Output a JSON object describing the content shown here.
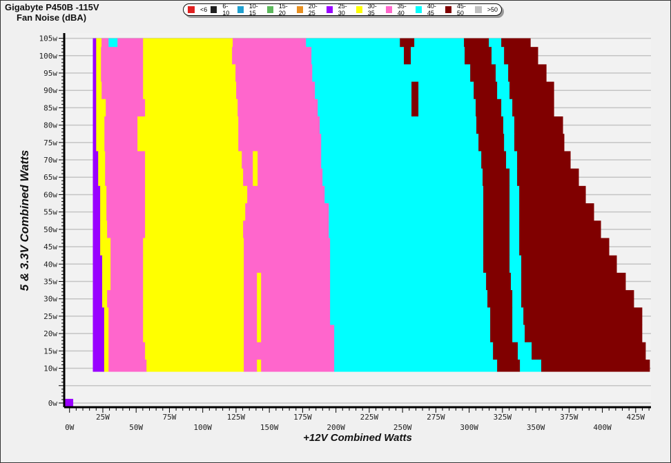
{
  "title": "Gigabyte P450B -115V",
  "subtitle": "Fan Noise (dBA)",
  "legend": [
    {
      "label": "<6",
      "color": "#e02020"
    },
    {
      "label": "6-10",
      "color": "#202020"
    },
    {
      "label": "10-15",
      "color": "#1fa0d0"
    },
    {
      "label": "15-20",
      "color": "#5cb85c"
    },
    {
      "label": "20-25",
      "color": "#e89020"
    },
    {
      "label": "25-30",
      "color": "#9900ff"
    },
    {
      "label": "30-35",
      "color": "#ffff00"
    },
    {
      "label": "35-40",
      "color": "#ff66cc"
    },
    {
      "label": "40-45",
      "color": "#00ffff"
    },
    {
      "label": "45-50",
      "color": "#800000"
    },
    {
      "label": ">50",
      "color": "#c0c0c0"
    }
  ],
  "chart_data": {
    "type": "heatmap",
    "title": "Gigabyte P450B -115V",
    "subtitle": "Fan Noise (dBA)",
    "xlabel": "+12V Combined Watts",
    "ylabel": "5 & 3.3V Combined Watts",
    "xlim": [
      -4,
      436.5
    ],
    "ylim": [
      -1.2,
      106.5
    ],
    "grid": "horizontal",
    "legend_position": "top",
    "x_ticks": [
      "0W",
      "25W",
      "50W",
      "75W",
      "100W",
      "125W",
      "150W",
      "175W",
      "200W",
      "225W",
      "250W",
      "275W",
      "300W",
      "325W",
      "350W",
      "375W",
      "400W",
      "425W"
    ],
    "y_ticks": [
      "0w",
      "10w",
      "15w",
      "20w",
      "25w",
      "30w",
      "35w",
      "40w",
      "45w",
      "50w",
      "55w",
      "60w",
      "65w",
      "70w",
      "75w",
      "80w",
      "85w",
      "90w",
      "95w",
      "100w",
      "105w"
    ],
    "rows": [
      {
        "y": 105,
        "edges": [
          17.5,
          20,
          24,
          29.3,
          36,
          55.2,
          122.5,
          177.5,
          248,
          258.8,
          296.1,
          314.8,
          324.1,
          345.9
        ],
        "bins": [
          "25-30",
          "30-35",
          "35-40",
          "40-45",
          "35-40",
          "30-35",
          "35-40",
          "40-45",
          "45-50",
          "40-45",
          "45-50",
          "40-45",
          "45-50"
        ]
      },
      {
        "y": 100,
        "edges": [
          17.5,
          20,
          23.6,
          55.2,
          122,
          181.6,
          251,
          256.2,
          296.6,
          316.8,
          326.2,
          351.5
        ],
        "bins": [
          "25-30",
          "30-35",
          "35-40",
          "30-35",
          "35-40",
          "40-45",
          "45-50",
          "40-45",
          "45-50",
          "40-45",
          "45-50"
        ]
      },
      {
        "y": 95,
        "edges": [
          17.5,
          20,
          23.6,
          55.2,
          124.6,
          182.2,
          300.8,
          319.9,
          329.3,
          357.8
        ],
        "bins": [
          "25-30",
          "30-35",
          "35-40",
          "30-35",
          "35-40",
          "40-45",
          "45-50",
          "40-45",
          "45-50"
        ]
      },
      {
        "y": 90,
        "edges": [
          17.5,
          20,
          24.1,
          55.2,
          125.1,
          184.2,
          256.7,
          261.9,
          303.4,
          321,
          330.3,
          363.5
        ],
        "bins": [
          "25-30",
          "30-35",
          "35-40",
          "30-35",
          "35-40",
          "40-45",
          "45-50",
          "40-45",
          "45-50",
          "40-45",
          "45-50"
        ]
      },
      {
        "y": 85,
        "edges": [
          17.5,
          20,
          27.2,
          56.7,
          126.2,
          186.3,
          256.7,
          261.9,
          304.9,
          324.1,
          332.4,
          363.5
        ],
        "bins": [
          "25-30",
          "30-35",
          "35-40",
          "30-35",
          "35-40",
          "40-45",
          "45-50",
          "40-45",
          "45-50",
          "40-45",
          "45-50"
        ]
      },
      {
        "y": 80,
        "edges": [
          17.5,
          20,
          26.2,
          51,
          126.7,
          187.8,
          305.4,
          325.6,
          333.9,
          370.2
        ],
        "bins": [
          "25-30",
          "30-35",
          "35-40",
          "30-35",
          "35-40",
          "40-45",
          "45-50",
          "40-45",
          "45-50"
        ]
      },
      {
        "y": 75,
        "edges": [
          17.5,
          20,
          26.2,
          51,
          126.7,
          188.9,
          307,
          326.2,
          333.9,
          371.2
        ],
        "bins": [
          "25-30",
          "30-35",
          "35-40",
          "30-35",
          "35-40",
          "40-45",
          "45-50",
          "40-45",
          "45-50"
        ]
      },
      {
        "y": 70,
        "edges": [
          17.5,
          21.5,
          26.7,
          56.7,
          129.3,
          137.6,
          141.2,
          188.9,
          309.1,
          327.7,
          336,
          375.9
        ],
        "bins": [
          "25-30",
          "30-35",
          "35-40",
          "30-35",
          "35-40",
          "30-35",
          "35-40",
          "40-45",
          "45-50",
          "40-45",
          "45-50"
        ]
      },
      {
        "y": 65,
        "edges": [
          17.5,
          21.5,
          26.7,
          56.7,
          130.3,
          137.6,
          141.2,
          189.9,
          310.1,
          330.3,
          336,
          382.1
        ],
        "bins": [
          "25-30",
          "30-35",
          "35-40",
          "30-35",
          "35-40",
          "30-35",
          "35-40",
          "40-45",
          "45-50",
          "40-45",
          "45-50"
        ]
      },
      {
        "y": 60,
        "edges": [
          17.5,
          23,
          27.7,
          56.7,
          133.4,
          191.5,
          310.6,
          330.3,
          337.6,
          387.3
        ],
        "bins": [
          "25-30",
          "30-35",
          "35-40",
          "30-35",
          "35-40",
          "40-45",
          "45-50",
          "40-45",
          "45-50"
        ]
      },
      {
        "y": 55,
        "edges": [
          17.5,
          23,
          27.7,
          56.7,
          131.9,
          194.6,
          310.6,
          330.3,
          337.6,
          393.5
        ],
        "bins": [
          "25-30",
          "30-35",
          "35-40",
          "30-35",
          "35-40",
          "40-45",
          "45-50",
          "40-45",
          "45-50"
        ]
      },
      {
        "y": 50,
        "edges": [
          17.5,
          23,
          28.2,
          56.7,
          130.3,
          194.6,
          310.6,
          330.3,
          337.6,
          398.7
        ],
        "bins": [
          "25-30",
          "30-35",
          "35-40",
          "30-35",
          "35-40",
          "40-45",
          "45-50",
          "40-45",
          "45-50"
        ]
      },
      {
        "y": 45,
        "edges": [
          17.5,
          23,
          30.8,
          55.2,
          130.8,
          195.6,
          310.6,
          330.3,
          337.6,
          404.9
        ],
        "bins": [
          "25-30",
          "30-35",
          "35-40",
          "30-35",
          "35-40",
          "40-45",
          "45-50",
          "40-45",
          "45-50"
        ]
      },
      {
        "y": 40,
        "edges": [
          17.5,
          24.5,
          30.8,
          55.2,
          130.8,
          195.6,
          310.6,
          330.3,
          339.1,
          410.6
        ],
        "bins": [
          "25-30",
          "30-35",
          "35-40",
          "30-35",
          "35-40",
          "40-45",
          "45-50",
          "40-45",
          "45-50"
        ]
      },
      {
        "y": 35,
        "edges": [
          17.5,
          24.5,
          30.8,
          55.2,
          130.8,
          140.7,
          143.8,
          195.6,
          312.7,
          331.3,
          339.1,
          417.3
        ],
        "bins": [
          "25-30",
          "30-35",
          "35-40",
          "30-35",
          "35-40",
          "30-35",
          "35-40",
          "40-45",
          "45-50",
          "40-45",
          "45-50"
        ]
      },
      {
        "y": 30,
        "edges": [
          17.5,
          24.5,
          28.2,
          55.2,
          130.8,
          140.7,
          143.8,
          195.6,
          313.7,
          332.4,
          339.1,
          423.5
        ],
        "bins": [
          "25-30",
          "30-35",
          "35-40",
          "30-35",
          "35-40",
          "30-35",
          "35-40",
          "40-45",
          "45-50",
          "40-45",
          "45-50"
        ]
      },
      {
        "y": 25,
        "edges": [
          17.5,
          26,
          29.3,
          55.2,
          130.8,
          140.7,
          143.8,
          195.6,
          315.8,
          332.4,
          340.7,
          429.7
        ],
        "bins": [
          "25-30",
          "30-35",
          "35-40",
          "30-35",
          "35-40",
          "30-35",
          "35-40",
          "40-45",
          "45-50",
          "40-45",
          "45-50"
        ]
      },
      {
        "y": 20,
        "edges": [
          17.5,
          26,
          29.3,
          55.2,
          130.8,
          140.7,
          143.8,
          198.7,
          315.8,
          332.4,
          341.7,
          429.7
        ],
        "bins": [
          "25-30",
          "30-35",
          "35-40",
          "30-35",
          "35-40",
          "30-35",
          "35-40",
          "40-45",
          "45-50",
          "40-45",
          "45-50"
        ]
      },
      {
        "y": 15,
        "edges": [
          17.5,
          26,
          29.3,
          56.7,
          130.8,
          198.7,
          317.9,
          336.5,
          346.9,
          432.3
        ],
        "bins": [
          "25-30",
          "30-35",
          "35-40",
          "30-35",
          "35-40",
          "40-45",
          "45-50",
          "40-45",
          "45-50"
        ]
      },
      {
        "y": 10,
        "edges": [
          17.5,
          26,
          29.3,
          57.8,
          130.8,
          140.7,
          143.8,
          198.7,
          321,
          338.1,
          354.1,
          435.4
        ],
        "bins": [
          "25-30",
          "30-35",
          "35-40",
          "30-35",
          "35-40",
          "30-35",
          "35-40",
          "40-45",
          "45-50",
          "40-45",
          "45-50"
        ]
      },
      {
        "y": 0,
        "edges": [
          -3.2,
          2.5
        ],
        "bins": [
          "25-30"
        ]
      }
    ]
  }
}
